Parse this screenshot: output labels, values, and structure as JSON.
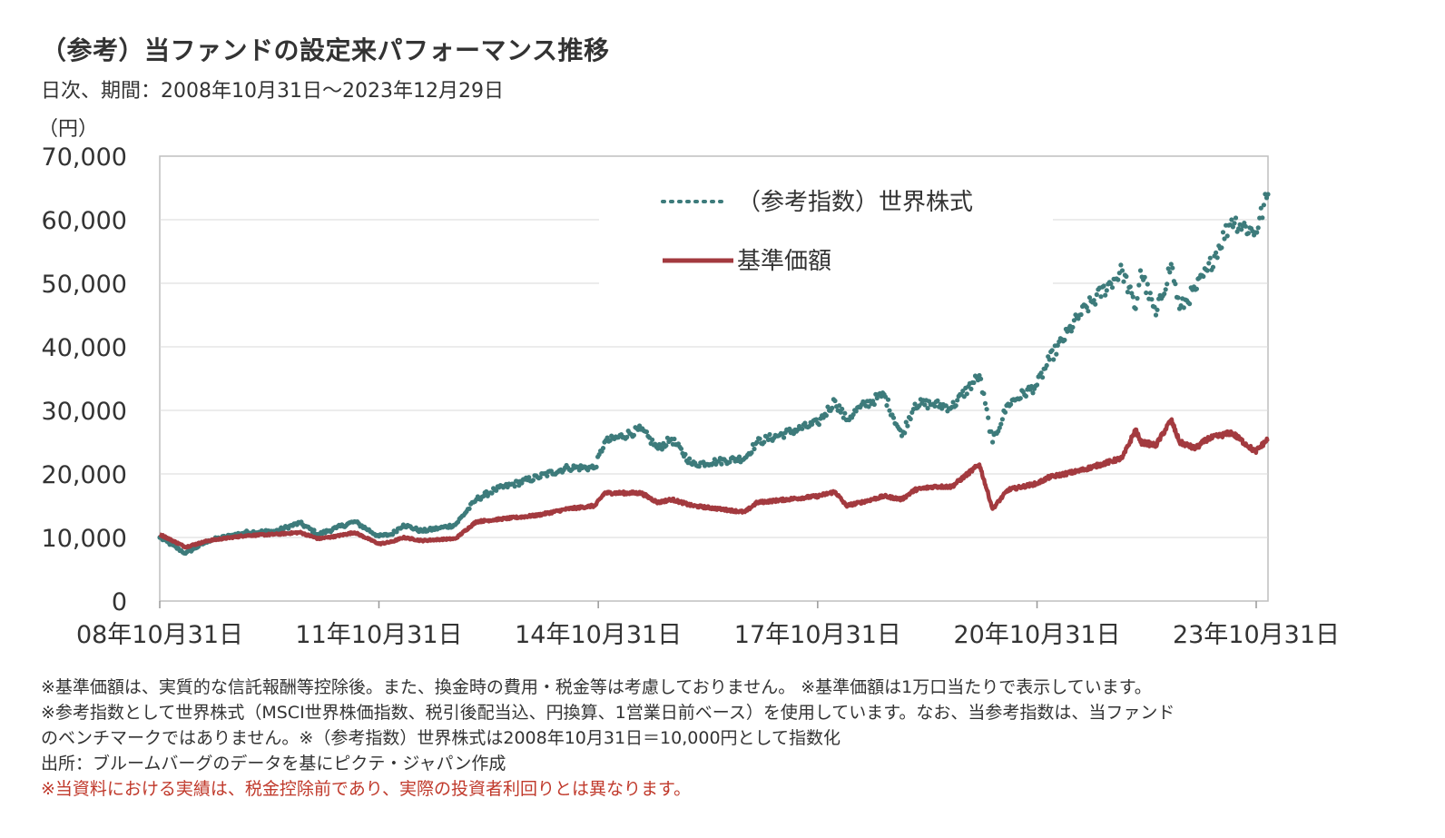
{
  "title": "（参考）当ファンドの設定来パフォーマンス推移",
  "subtitle": "日次、期間：2008年10月31日～2023年12月29日",
  "unit_label": "（円）",
  "colors": {
    "index_series": "#3d7b7b",
    "nav_series": "#a33a3f",
    "grid": "#d9d9d9",
    "axis": "#bfbfbf",
    "note_highlight": "#c0392b"
  },
  "chart_data": {
    "type": "line",
    "title": "",
    "xlabel": "",
    "ylabel": "（円）",
    "ylim": [
      0,
      70000
    ],
    "yticks": [
      "0",
      "10,000",
      "20,000",
      "30,000",
      "40,000",
      "50,000",
      "60,000",
      "70,000"
    ],
    "xticks": [
      "08年10月31日",
      "11年10月31日",
      "14年10月31日",
      "17年10月31日",
      "20年10月31日",
      "23年10月31日"
    ],
    "grid": "horizontal",
    "legend_position": "top-center",
    "x_range": [
      "2008-10-31",
      "2023-12-29"
    ],
    "series": [
      {
        "name": "（参考指数）世界株式",
        "style": "dotted",
        "points": [
          [
            "2008-10-31",
            10000
          ],
          [
            "2009-03-09",
            7500
          ],
          [
            "2009-07-01",
            9500
          ],
          [
            "2010-01-01",
            10800
          ],
          [
            "2010-06-01",
            11000
          ],
          [
            "2010-10-01",
            12300
          ],
          [
            "2011-01-01",
            10500
          ],
          [
            "2011-04-01",
            11500
          ],
          [
            "2011-07-01",
            12500
          ],
          [
            "2011-10-31",
            10200
          ],
          [
            "2012-01-01",
            10500
          ],
          [
            "2012-03-01",
            12000
          ],
          [
            "2012-06-01",
            11000
          ],
          [
            "2012-09-01",
            11500
          ],
          [
            "2012-11-15",
            12000
          ],
          [
            "2013-03-01",
            16000
          ],
          [
            "2013-06-01",
            17500
          ],
          [
            "2013-12-31",
            19500
          ],
          [
            "2014-06-01",
            21000
          ],
          [
            "2014-10-15",
            21000
          ],
          [
            "2014-12-01",
            25000
          ],
          [
            "2015-06-01",
            27000
          ],
          [
            "2015-08-25",
            24000
          ],
          [
            "2015-11-01",
            25500
          ],
          [
            "2016-02-12",
            21500
          ],
          [
            "2016-06-24",
            22000
          ],
          [
            "2016-11-01",
            22500
          ],
          [
            "2017-01-01",
            25000
          ],
          [
            "2017-10-31",
            28000
          ],
          [
            "2018-01-26",
            31500
          ],
          [
            "2018-03-23",
            28500
          ],
          [
            "2018-06-01",
            30500
          ],
          [
            "2018-09-28",
            32500
          ],
          [
            "2018-12-25",
            26000
          ],
          [
            "2019-03-01",
            31000
          ],
          [
            "2019-06-01",
            31000
          ],
          [
            "2019-09-01",
            30500
          ],
          [
            "2020-01-17",
            35500
          ],
          [
            "2020-03-23",
            25000
          ],
          [
            "2020-06-08",
            31000
          ],
          [
            "2020-10-31",
            34000
          ],
          [
            "2021-01-01",
            38000
          ],
          [
            "2021-06-01",
            45000
          ],
          [
            "2021-12-31",
            52000
          ],
          [
            "2022-03-08",
            46000
          ],
          [
            "2022-04-01",
            52000
          ],
          [
            "2022-06-17",
            45000
          ],
          [
            "2022-09-01",
            53000
          ],
          [
            "2022-10-13",
            46000
          ],
          [
            "2022-12-31",
            49000
          ],
          [
            "2023-03-01",
            52000
          ],
          [
            "2023-06-30",
            60000
          ],
          [
            "2023-10-27",
            58000
          ],
          [
            "2023-12-29",
            64000
          ]
        ]
      },
      {
        "name": "基準価額",
        "style": "solid",
        "points": [
          [
            "2008-10-31",
            10500
          ],
          [
            "2009-03-09",
            8500
          ],
          [
            "2009-07-01",
            9500
          ],
          [
            "2010-01-01",
            10300
          ],
          [
            "2010-06-01",
            10500
          ],
          [
            "2010-10-01",
            10800
          ],
          [
            "2011-01-01",
            9800
          ],
          [
            "2011-04-01",
            10200
          ],
          [
            "2011-07-01",
            10800
          ],
          [
            "2011-10-31",
            9000
          ],
          [
            "2012-01-01",
            9300
          ],
          [
            "2012-03-01",
            10000
          ],
          [
            "2012-06-01",
            9500
          ],
          [
            "2012-09-01",
            9700
          ],
          [
            "2012-11-15",
            9800
          ],
          [
            "2013-03-01",
            12500
          ],
          [
            "2013-06-01",
            12800
          ],
          [
            "2013-12-31",
            13500
          ],
          [
            "2014-06-01",
            14500
          ],
          [
            "2014-10-15",
            15000
          ],
          [
            "2014-12-01",
            17000
          ],
          [
            "2015-06-01",
            17000
          ],
          [
            "2015-08-25",
            15500
          ],
          [
            "2015-11-01",
            16000
          ],
          [
            "2016-02-12",
            15000
          ],
          [
            "2016-06-24",
            14500
          ],
          [
            "2016-11-01",
            14000
          ],
          [
            "2017-01-01",
            15500
          ],
          [
            "2017-10-31",
            16500
          ],
          [
            "2018-01-26",
            17200
          ],
          [
            "2018-03-23",
            15000
          ],
          [
            "2018-06-01",
            15500
          ],
          [
            "2018-09-28",
            16500
          ],
          [
            "2018-12-25",
            16000
          ],
          [
            "2019-03-01",
            17500
          ],
          [
            "2019-06-01",
            18000
          ],
          [
            "2019-09-01",
            18000
          ],
          [
            "2020-01-17",
            21500
          ],
          [
            "2020-03-23",
            14500
          ],
          [
            "2020-06-08",
            17500
          ],
          [
            "2020-10-31",
            18500
          ],
          [
            "2021-01-01",
            19500
          ],
          [
            "2021-06-01",
            20500
          ],
          [
            "2021-12-31",
            22500
          ],
          [
            "2022-03-08",
            27000
          ],
          [
            "2022-04-01",
            25000
          ],
          [
            "2022-06-17",
            24500
          ],
          [
            "2022-09-01",
            28500
          ],
          [
            "2022-10-13",
            25000
          ],
          [
            "2022-12-31",
            24000
          ],
          [
            "2023-03-01",
            25500
          ],
          [
            "2023-06-30",
            26500
          ],
          [
            "2023-10-27",
            23500
          ],
          [
            "2023-12-29",
            25500
          ]
        ]
      }
    ]
  },
  "notes": {
    "line1": "※基準価額は、実質的な信託報酬等控除後。また、換金時の費用・税金等は考慮しておりません。 ※基準価額は1万口当たりで表示しています。",
    "line2": "※参考指数として世界株式（MSCI世界株価指数、税引後配当込、円換算、1営業日前ベース）を使用しています。なお、当参考指数は、当ファンド",
    "line3": "のベンチマークではありません。※（参考指数）世界株式は2008年10月31日＝10,000円として指数化",
    "line4": "出所：ブルームバーグのデータを基にピクテ・ジャパン作成",
    "line5": "※当資料における実績は、税金控除前であり、実際の投資者利回りとは異なります。"
  }
}
